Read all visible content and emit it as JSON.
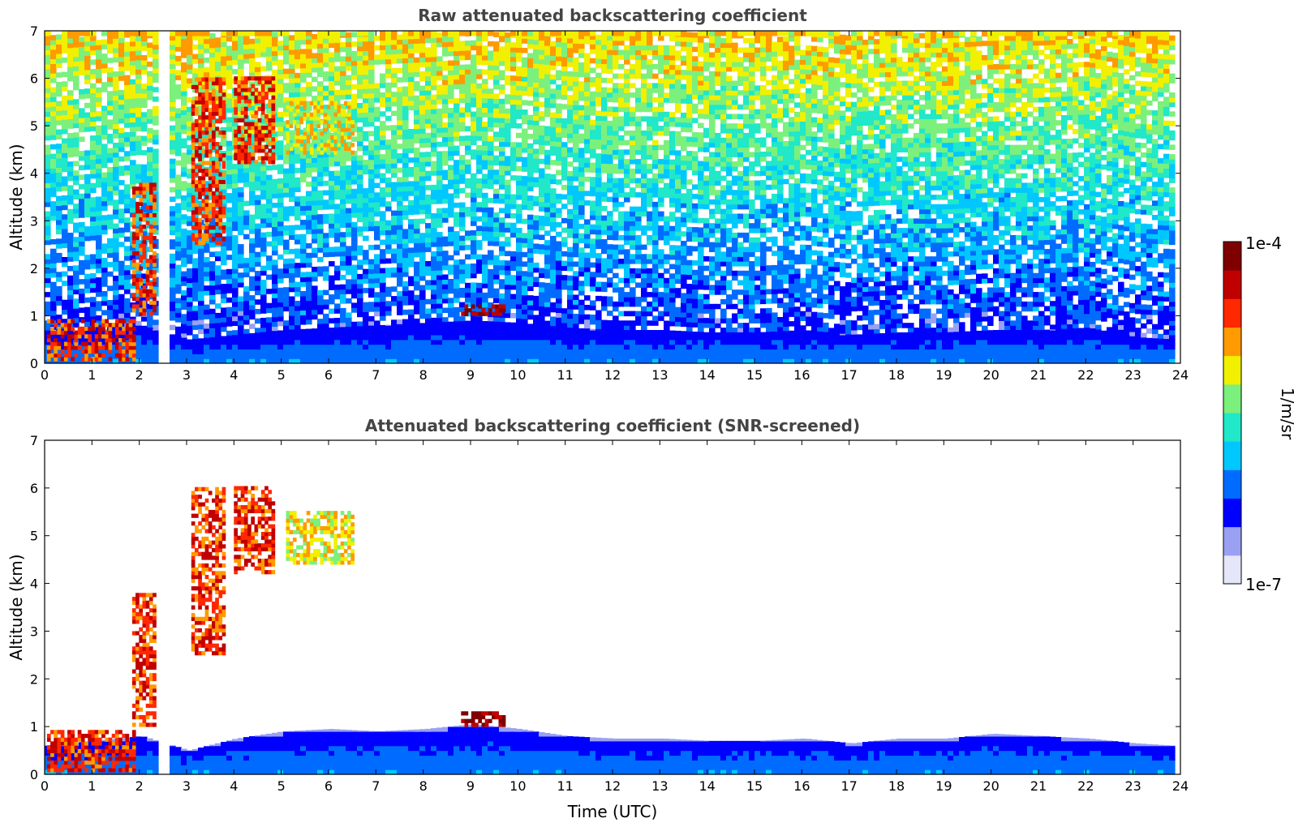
{
  "colors": {
    "title": "#444444",
    "axis": "#000000",
    "colormap": [
      "#e6e6fa",
      "#9aa0f2",
      "#0000ff",
      "#006cff",
      "#00c8ff",
      "#20e8c8",
      "#7cf07c",
      "#f0f000",
      "#ff9a00",
      "#ff2800",
      "#c00000",
      "#7f0000"
    ]
  },
  "chart_data": [
    {
      "type": "heatmap",
      "title": "Raw attenuated backscattering coefficient",
      "xlabel": "",
      "ylabel": "Altitude (km)",
      "xlim": [
        0,
        24
      ],
      "ylim": [
        0,
        7
      ],
      "xticks": [
        "0",
        "1",
        "2",
        "3",
        "4",
        "5",
        "6",
        "7",
        "8",
        "9",
        "10",
        "11",
        "12",
        "13",
        "14",
        "15",
        "16",
        "17",
        "18",
        "19",
        "20",
        "21",
        "22",
        "23",
        "24"
      ],
      "yticks": [
        "0",
        "1",
        "2",
        "3",
        "4",
        "5",
        "6",
        "7"
      ],
      "data_end_time": 23.8,
      "data_gap": [
        2.45,
        2.6
      ],
      "boundary_layer_top": [
        [
          0,
          0.6
        ],
        [
          1,
          0.7
        ],
        [
          2,
          0.8
        ],
        [
          3,
          0.5
        ],
        [
          4,
          0.6
        ],
        [
          5,
          0.7
        ],
        [
          6,
          0.75
        ],
        [
          7,
          0.8
        ],
        [
          8,
          0.85
        ],
        [
          9,
          0.9
        ],
        [
          10,
          0.85
        ],
        [
          11,
          0.75
        ],
        [
          12,
          0.7
        ],
        [
          13,
          0.7
        ],
        [
          14,
          0.65
        ],
        [
          15,
          0.65
        ],
        [
          16,
          0.7
        ],
        [
          17,
          0.6
        ],
        [
          18,
          0.65
        ],
        [
          19,
          0.65
        ],
        [
          20,
          0.7
        ],
        [
          21,
          0.7
        ],
        [
          22,
          0.75
        ],
        [
          23,
          0.55
        ],
        [
          23.8,
          0.5
        ]
      ],
      "cloud_features": [
        {
          "t": [
            0.05,
            1.9
          ],
          "alt": [
            0.05,
            0.9
          ],
          "level": "high"
        },
        {
          "t": [
            1.85,
            2.35
          ],
          "alt": [
            1.0,
            3.8
          ],
          "level": "high"
        },
        {
          "t": [
            3.1,
            3.8
          ],
          "alt": [
            2.5,
            6.0
          ],
          "level": "high"
        },
        {
          "t": [
            4.0,
            4.8
          ],
          "alt": [
            4.2,
            6.0
          ],
          "level": "high"
        },
        {
          "t": [
            5.1,
            6.5
          ],
          "alt": [
            4.4,
            5.5
          ],
          "level": "medium"
        },
        {
          "t": [
            8.8,
            9.7
          ],
          "alt": [
            1.0,
            1.2
          ],
          "level": "very high"
        }
      ],
      "noise_above_boundary_layer": true
    },
    {
      "type": "heatmap",
      "title": "Attenuated backscattering coefficient (SNR-screened)",
      "xlabel": "Time (UTC)",
      "ylabel": "Altitude (km)",
      "xlim": [
        0,
        24
      ],
      "ylim": [
        0,
        7
      ],
      "xticks": [
        "0",
        "1",
        "2",
        "3",
        "4",
        "5",
        "6",
        "7",
        "8",
        "9",
        "10",
        "11",
        "12",
        "13",
        "14",
        "15",
        "16",
        "17",
        "18",
        "19",
        "20",
        "21",
        "22",
        "23",
        "24"
      ],
      "yticks": [
        "0",
        "1",
        "2",
        "3",
        "4",
        "5",
        "6",
        "7"
      ],
      "data_end_time": 23.8,
      "data_gap": [
        2.45,
        2.6
      ],
      "boundary_layer_top": [
        [
          0,
          0.6
        ],
        [
          1,
          0.7
        ],
        [
          2,
          0.8
        ],
        [
          3,
          0.5
        ],
        [
          4,
          0.75
        ],
        [
          5,
          0.9
        ],
        [
          6,
          0.95
        ],
        [
          7,
          0.9
        ],
        [
          8,
          0.95
        ],
        [
          9,
          1.05
        ],
        [
          10,
          0.95
        ],
        [
          11,
          0.8
        ],
        [
          12,
          0.75
        ],
        [
          13,
          0.75
        ],
        [
          14,
          0.7
        ],
        [
          15,
          0.7
        ],
        [
          16,
          0.75
        ],
        [
          17,
          0.65
        ],
        [
          18,
          0.75
        ],
        [
          19,
          0.75
        ],
        [
          20,
          0.85
        ],
        [
          21,
          0.8
        ],
        [
          22,
          0.75
        ],
        [
          23,
          0.65
        ],
        [
          23.8,
          0.6
        ]
      ],
      "cloud_features": [
        {
          "t": [
            0.05,
            1.9
          ],
          "alt": [
            0.05,
            0.9
          ],
          "level": "high"
        },
        {
          "t": [
            1.85,
            2.35
          ],
          "alt": [
            1.0,
            3.8
          ],
          "level": "high"
        },
        {
          "t": [
            3.1,
            3.8
          ],
          "alt": [
            2.5,
            6.0
          ],
          "level": "high"
        },
        {
          "t": [
            4.0,
            4.8
          ],
          "alt": [
            4.2,
            6.0
          ],
          "level": "high"
        },
        {
          "t": [
            5.1,
            6.5
          ],
          "alt": [
            4.4,
            5.5
          ],
          "level": "medium"
        },
        {
          "t": [
            8.8,
            9.7
          ],
          "alt": [
            1.0,
            1.25
          ],
          "level": "very high"
        }
      ],
      "noise_above_boundary_layer": false
    }
  ],
  "colorbar": {
    "label": "1/m/sr",
    "max_label": "1e-4",
    "min_label": "1e-7",
    "range": [
      1e-07,
      0.0001
    ],
    "scale": "log"
  }
}
